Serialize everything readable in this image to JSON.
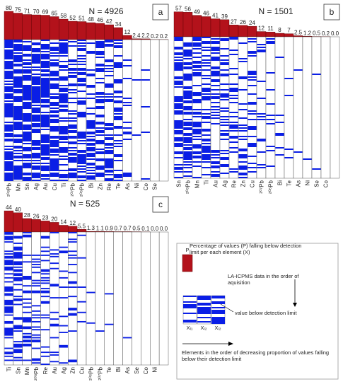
{
  "chart_data": [
    {
      "type": "bar-stripes",
      "title": "N = 4926",
      "panel": "a",
      "color": "#b3121b",
      "stripe_color": "#0a1ee6",
      "categories": [
        "²⁰⁸Pb",
        "Mn",
        "Sn",
        "Ag",
        "Au",
        "Cu",
        "Ti",
        "²⁰⁷Pb",
        "²⁰⁶Pb",
        "Bi",
        "Zn",
        "Re",
        "Te",
        "As",
        "Ni",
        "Co",
        "Se",
        null
      ],
      "values": [
        80,
        75,
        71,
        70,
        69,
        65,
        58,
        52,
        51,
        48,
        46,
        42,
        34,
        12,
        2.4,
        2.2,
        0.2,
        0.2
      ],
      "value_labels": [
        "80",
        "75",
        "71",
        "70",
        "69",
        "65",
        "58",
        "52",
        "51",
        "48",
        "46",
        "42",
        "34",
        "12",
        "2.4",
        "2.2",
        "0.2",
        "0.2"
      ]
    },
    {
      "type": "bar-stripes",
      "title": "N = 1501",
      "panel": "b",
      "color": "#b3121b",
      "stripe_color": "#0a1ee6",
      "categories": [
        "Sn",
        "²⁰⁸Pb",
        "Mn",
        "Ti",
        "Au",
        "Ag",
        "Re",
        "Zn",
        "Cu",
        "²⁰⁷Pb",
        "²⁰⁶Pb",
        "Bi",
        "Te",
        "As",
        "Ni",
        "Se",
        "Co",
        null
      ],
      "values": [
        57,
        56,
        49,
        46,
        41,
        39,
        27,
        26,
        24,
        12,
        11,
        8,
        7,
        2.5,
        1.2,
        0.5,
        0.2,
        0
      ],
      "value_labels": [
        "57",
        "56",
        "49",
        "46",
        "41",
        "39",
        "27",
        "26",
        "24",
        "12",
        "11",
        "8",
        "7",
        "2.5",
        "1.2",
        "0.5",
        "0.2",
        "0.0"
      ]
    },
    {
      "type": "bar-stripes",
      "title": "N = 525",
      "panel": "c",
      "color": "#b3121b",
      "stripe_color": "#0a1ee6",
      "categories": [
        "Ti",
        "Sn",
        "Mn",
        "²⁰⁸Pb",
        "Re",
        "Au",
        "Ag",
        "Zn",
        "Cu",
        "²⁰⁶Pb",
        "²⁰⁷Pb",
        "Te",
        "Bi",
        "As",
        "Se",
        "Co",
        "Ni",
        null
      ],
      "values": [
        44,
        40,
        28,
        26,
        23,
        20,
        14,
        12,
        5.5,
        1.3,
        1.1,
        0.9,
        0.7,
        0.7,
        0.5,
        0.1,
        0,
        0
      ],
      "value_labels": [
        "44",
        "40",
        "28",
        "26",
        "23",
        "20",
        "14",
        "12",
        "5.5",
        "1.3",
        "1.1",
        "0.9",
        "0.7",
        "0.7",
        "0.5",
        "0.1",
        "0.0",
        "0.0"
      ]
    }
  ],
  "legend": {
    "bar_label": "P",
    "bar_text": "Percentage of values (P) falling below detection limit per each element (X)",
    "order_text": "LA-ICPMS data in the order of aquisition",
    "below_text": "value below detection limit",
    "columns": [
      "Xᵢ₁",
      "Xᵢ₂",
      "Xᵢ₂"
    ],
    "sort_text": "Elements in the order of decreasing proportion of values falling below their detection limit"
  }
}
